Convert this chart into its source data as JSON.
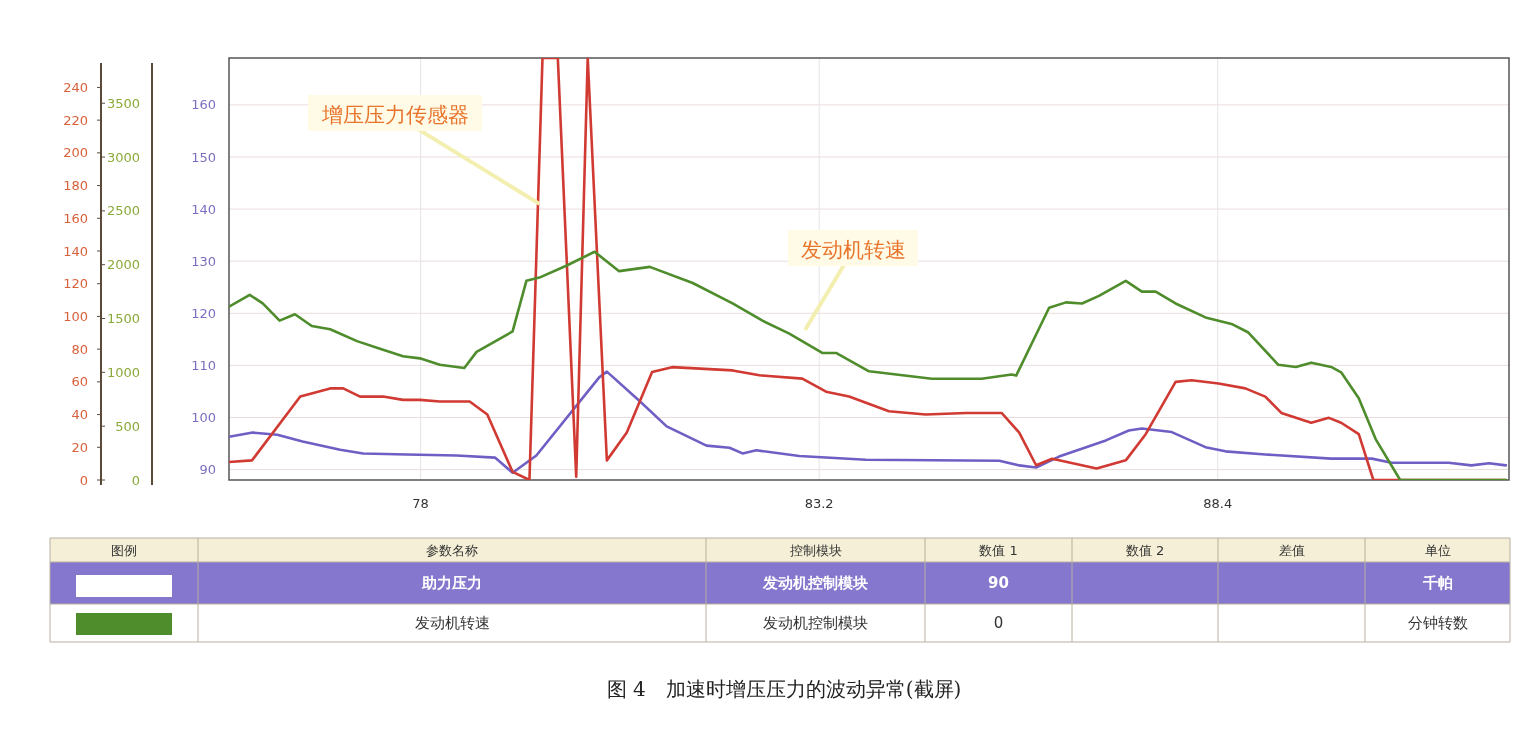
{
  "chart_data": {
    "type": "line",
    "title": "图 4　加速时增压压力的波动异常(截屏)",
    "xlim": [
      75.5,
      92.2
    ],
    "xticks": [
      78,
      83.2,
      88.4
    ],
    "ylim": [
      88,
      169
    ],
    "yticks": [
      90,
      100,
      110,
      120,
      130,
      140,
      150,
      160
    ],
    "y2lim": [
      0,
      258
    ],
    "y2ticks": [
      0,
      20,
      40,
      60,
      80,
      100,
      120,
      140,
      160,
      180,
      200,
      220,
      240
    ],
    "y3lim": [
      0,
      3920
    ],
    "y3ticks": [
      0,
      500,
      1000,
      1500,
      2000,
      2500,
      3000,
      3500
    ],
    "grid": true,
    "line_style": "solid",
    "marker": "none",
    "series": [
      {
        "color": "#6f5fc4",
        "x": [
          75.5,
          75.81,
          76.13,
          76.46,
          76.95,
          77.25,
          77.82,
          78.47,
          78.97,
          79.2,
          79.51,
          80.33,
          80.43,
          80.86,
          81.21,
          81.73,
          82.03,
          82.2,
          82.38,
          82.94,
          83.81,
          85.55,
          85.81,
          86.03,
          86.33,
          86.94,
          87.24,
          87.41,
          87.8,
          88.24,
          88.5,
          89.02,
          89.88,
          90.41,
          90.67,
          91.41,
          91.71,
          91.94,
          92.16
        ],
        "values": [
          96.3,
          97.1,
          96.7,
          95.4,
          93.8,
          93.1,
          92.9,
          92.7,
          92.3,
          89.4,
          92.7,
          107.7,
          108.8,
          103.1,
          98.3,
          94.6,
          94.2,
          93.1,
          93.7,
          92.6,
          91.9,
          91.7,
          90.8,
          90.4,
          92.5,
          95.6,
          97.5,
          97.9,
          97.2,
          94.3,
          93.5,
          92.9,
          92.1,
          92.1,
          91.3,
          91.3,
          90.8,
          91.2,
          90.8
        ]
      },
      {
        "color": "#d03a32",
        "axis": "y2",
        "x": [
          75.5,
          75.8,
          76.43,
          76.82,
          76.99,
          77.21,
          77.51,
          77.77,
          77.99,
          78.25,
          78.64,
          78.87,
          79.2,
          79.42,
          79.59,
          79.79,
          80.03,
          80.18,
          80.43,
          80.69,
          81.02,
          81.28,
          82.07,
          82.42,
          82.98,
          83.29,
          83.59,
          84.11,
          84.59,
          85.12,
          85.58,
          85.81,
          86.03,
          86.24,
          86.82,
          87.2,
          87.46,
          87.85,
          88.06,
          88.41,
          88.76,
          89.02,
          89.23,
          89.62,
          89.85,
          90.01,
          90.24,
          90.43,
          92.16
        ],
        "values": [
          11,
          12,
          51,
          56,
          56,
          51,
          51,
          49,
          49,
          48,
          48,
          40,
          5,
          0,
          258,
          258,
          2,
          258,
          12,
          29,
          66,
          69,
          67,
          64,
          62,
          54,
          51,
          42,
          40,
          41,
          41,
          29,
          9,
          13,
          7,
          12,
          28,
          60,
          61,
          59,
          56,
          51,
          41,
          35,
          38,
          35,
          28,
          0,
          0
        ]
      },
      {
        "color": "#4e8c2c",
        "axis": "y3",
        "x": [
          75.5,
          75.77,
          75.94,
          76.16,
          76.36,
          76.58,
          76.82,
          77.17,
          77.47,
          77.77,
          77.99,
          78.25,
          78.57,
          78.73,
          79.2,
          79.38,
          79.55,
          79.9,
          80.27,
          80.59,
          80.99,
          81.55,
          82.07,
          82.46,
          82.81,
          83.24,
          83.42,
          83.85,
          84.67,
          85.32,
          85.71,
          85.77,
          86.2,
          86.42,
          86.63,
          86.85,
          87.2,
          87.41,
          87.59,
          87.85,
          88.24,
          88.58,
          88.8,
          89.19,
          89.42,
          89.62,
          89.88,
          90.01,
          90.24,
          90.46,
          90.78,
          92.16
        ],
        "values": [
          1610,
          1720,
          1640,
          1480,
          1540,
          1430,
          1400,
          1290,
          1220,
          1150,
          1130,
          1070,
          1040,
          1190,
          1380,
          1850,
          1880,
          1990,
          2120,
          1940,
          1980,
          1830,
          1640,
          1480,
          1360,
          1180,
          1180,
          1010,
          940,
          940,
          980,
          970,
          1600,
          1650,
          1640,
          1710,
          1850,
          1750,
          1750,
          1640,
          1510,
          1450,
          1370,
          1070,
          1050,
          1090,
          1050,
          1000,
          760,
          380,
          0,
          0
        ]
      }
    ],
    "annotations": [
      {
        "text": "增压压力传感器",
        "x": 79.55,
        "y": 141
      },
      "发动机转速",
      "图例",
      "参数名称",
      "控制模块",
      "数值 1",
      "数值 2",
      "差值",
      "单位",
      "助力压力",
      "发动机控制模块",
      "90",
      "千帕",
      "发动机转速",
      "发动机控制模块",
      "0",
      "分钟转数"
    ]
  }
}
